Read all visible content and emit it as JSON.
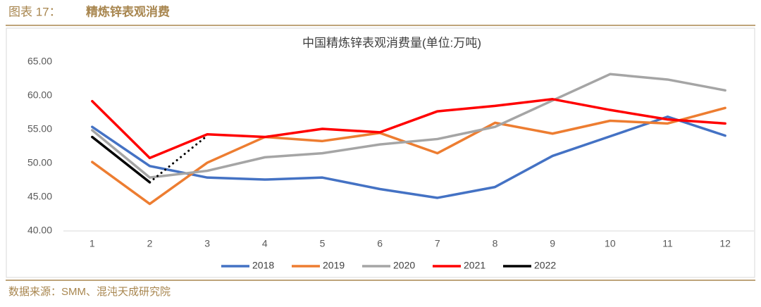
{
  "header": {
    "label": "图表 17：",
    "title": "精炼锌表观消费"
  },
  "source": "数据来源：SMM、混沌天成研究院",
  "chart_data": {
    "type": "line",
    "title": "中国精炼锌表观消费量(单位:万吨)",
    "categories": [
      "1",
      "2",
      "3",
      "4",
      "5",
      "6",
      "7",
      "8",
      "9",
      "10",
      "11",
      "12"
    ],
    "ylim": [
      40,
      65
    ],
    "yticks": [
      {
        "value": 40,
        "label": "40.00"
      },
      {
        "value": 45,
        "label": "45.00"
      },
      {
        "value": 50,
        "label": "50.00"
      },
      {
        "value": 55,
        "label": "55.00"
      },
      {
        "value": 60,
        "label": "60.00"
      },
      {
        "value": 65,
        "label": "65.00"
      }
    ],
    "grid": false,
    "legend": "bottom",
    "series": [
      {
        "name": "2018",
        "color": "#4472c4",
        "values": [
          55.4,
          49.6,
          47.9,
          47.6,
          47.9,
          46.2,
          44.9,
          46.5,
          51.1,
          54.0,
          56.9,
          54.1
        ]
      },
      {
        "name": "2019",
        "color": "#ed7d31",
        "values": [
          50.2,
          44.0,
          50.1,
          53.9,
          53.3,
          54.5,
          51.5,
          56.0,
          54.4,
          56.3,
          55.9,
          58.2
        ]
      },
      {
        "name": "2020",
        "color": "#a5a5a5",
        "values": [
          54.9,
          47.9,
          48.9,
          50.9,
          51.5,
          52.8,
          53.6,
          55.4,
          59.3,
          63.2,
          62.4,
          60.8
        ]
      },
      {
        "name": "2021",
        "color": "#ff0000",
        "values": [
          59.2,
          50.8,
          54.3,
          53.9,
          55.1,
          54.6,
          57.7,
          58.5,
          59.5,
          57.9,
          56.5,
          55.9
        ]
      },
      {
        "name": "2022",
        "color": "#000000",
        "values": [
          53.9,
          47.2,
          54.1,
          null,
          null,
          null,
          null,
          null,
          null,
          null,
          null,
          null
        ],
        "dotted_from": 1
      }
    ]
  }
}
